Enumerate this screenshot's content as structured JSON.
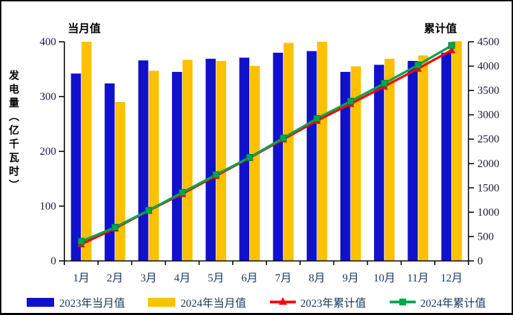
{
  "page": {
    "background": "#ffffff",
    "frame_border_color": "#000000"
  },
  "colors": {
    "bar_2023": "#1111CC",
    "bar_2024": "#FFC000",
    "line_2023": "#FE0000",
    "line_2024": "#00A550",
    "line_2024_marker_edge": "#007A3D",
    "axis_line": "#000000",
    "tick_label": "#1A1A40",
    "month_label": "#17375E",
    "legend_text": "#17375E",
    "title_text": "#000000"
  },
  "chart_data": {
    "type": "bar",
    "subtype": "combo-bar-line-dual-axis",
    "title_left": "当月值",
    "title_right": "累计值",
    "y_axis_label": "发电量（亿千瓦时）",
    "categories": [
      "1月",
      "2月",
      "3月",
      "4月",
      "5月",
      "6月",
      "7月",
      "8月",
      "9月",
      "10月",
      "11月",
      "12月"
    ],
    "left_axis": {
      "min": 0,
      "max": 400,
      "step": 100,
      "tick_labels": [
        "0",
        "100",
        "200",
        "300",
        "400"
      ]
    },
    "right_axis": {
      "min": 0,
      "max": 4500,
      "step": 500,
      "tick_labels": [
        "0",
        "500",
        "1000",
        "1500",
        "2000",
        "2500",
        "3000",
        "3500",
        "4000",
        "4500"
      ]
    },
    "grid": false,
    "legend_position": "bottom",
    "series": [
      {
        "name": "2023年当月值",
        "kind": "bar",
        "axis": "left",
        "marker": "none",
        "values": [
          342,
          324,
          366,
          345,
          369,
          371,
          380,
          383,
          345,
          358,
          365,
          380
        ]
      },
      {
        "name": "2024年当月值",
        "kind": "bar",
        "axis": "left",
        "marker": "none",
        "values": [
          400,
          290,
          347,
          367,
          365,
          356,
          398,
          400,
          355,
          369,
          375,
          401
        ]
      },
      {
        "name": "2023年累计值",
        "kind": "line",
        "axis": "right",
        "marker": "triangle-up",
        "values": [
          342,
          666,
          1032,
          1377,
          1746,
          2117,
          2497,
          2880,
          3225,
          3583,
          3948,
          4328
        ]
      },
      {
        "name": "2024年累计值",
        "kind": "line",
        "axis": "right",
        "marker": "square",
        "values": [
          400,
          690,
          1037,
          1404,
          1769,
          2125,
          2523,
          2923,
          3278,
          3647,
          4022,
          4423
        ]
      }
    ]
  }
}
